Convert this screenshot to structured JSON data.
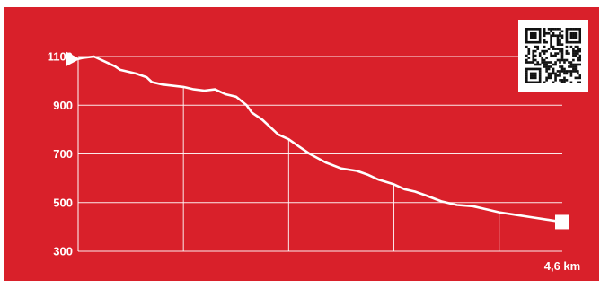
{
  "chart_data": {
    "type": "area",
    "title": "",
    "xlabel": "",
    "ylabel": "",
    "x_end_label": "4,6 km",
    "xlim": [
      0,
      4.6
    ],
    "ylim": [
      300,
      1100
    ],
    "y_ticks": [
      "1100",
      "900",
      "700",
      "500",
      "300"
    ],
    "y_tick_values": [
      1100,
      900,
      700,
      500,
      300
    ],
    "x_gridlines": [
      1,
      2,
      3,
      4
    ],
    "grid": true,
    "colors": {
      "background": "#d9202a",
      "line": "#ffffff"
    },
    "series": [
      {
        "x": [
          0,
          0.05,
          0.15,
          0.25,
          0.35,
          0.4,
          0.55,
          0.65,
          0.7,
          0.8,
          1.0,
          1.1,
          1.2,
          1.3,
          1.4,
          1.5,
          1.6,
          1.65,
          1.75,
          1.9,
          2.0,
          2.1,
          2.2,
          2.35,
          2.5,
          2.65,
          2.75,
          2.85,
          3.0,
          3.1,
          3.2,
          3.3,
          3.45,
          3.6,
          3.75,
          3.9,
          4.0,
          4.15,
          4.3,
          4.45,
          4.6
        ],
        "y": [
          1090,
          1095,
          1100,
          1080,
          1060,
          1045,
          1030,
          1015,
          995,
          985,
          975,
          965,
          960,
          965,
          945,
          935,
          900,
          870,
          840,
          780,
          760,
          730,
          700,
          665,
          640,
          630,
          615,
          595,
          575,
          555,
          545,
          530,
          505,
          490,
          485,
          470,
          460,
          450,
          440,
          430,
          420
        ]
      }
    ],
    "markers": {
      "start": "triangle",
      "end": "square"
    }
  },
  "qr": {
    "icon": "qr-code-icon"
  }
}
